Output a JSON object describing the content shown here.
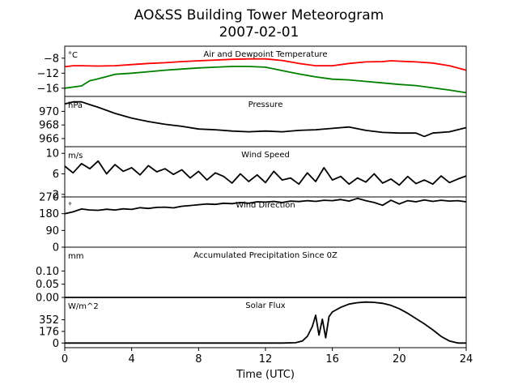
{
  "chart_data": {
    "type": "line",
    "title": "AO&SS Building Tower Meteorogram",
    "subtitle": "2007-02-01",
    "xlabel": "Time (UTC)",
    "xlim": [
      0,
      24
    ],
    "xticks": [
      "0",
      "4",
      "8",
      "12",
      "16",
      "20",
      "24"
    ],
    "panels": [
      {
        "id": "temperature",
        "unit": "°C",
        "label": "Air and Dewpoint Temperature",
        "ylim": [
          -18.2,
          -4.8
        ],
        "yticks": [
          "−8",
          "−12",
          "−16"
        ],
        "ytick_values": [
          -8,
          -12,
          -16
        ],
        "series": [
          {
            "color": "#ff0000",
            "x": [
              0,
              0.5,
              1,
              2,
              3,
              4,
              5,
              6,
              7,
              8,
              9,
              10,
              11,
              12,
              13,
              14,
              15,
              16,
              17,
              18,
              19,
              19.5,
              20,
              21,
              22,
              23,
              24
            ],
            "y": [
              -10.3,
              -10.0,
              -10.0,
              -10.1,
              -10.0,
              -9.7,
              -9.4,
              -9.2,
              -8.9,
              -8.7,
              -8.5,
              -8.3,
              -8.2,
              -8.2,
              -8.6,
              -9.4,
              -10.0,
              -10.0,
              -9.4,
              -9.0,
              -8.9,
              -8.7,
              -8.8,
              -9.0,
              -9.3,
              -10.0,
              -11.2
            ]
          },
          {
            "color": "#008000",
            "x": [
              0,
              1,
              1.5,
              2,
              3,
              4,
              5,
              6,
              7,
              8,
              9,
              10,
              11,
              12,
              13,
              14,
              15,
              16,
              17,
              18,
              19,
              20,
              21,
              22,
              23,
              24
            ],
            "y": [
              -16.0,
              -15.4,
              -14.0,
              -13.5,
              -12.3,
              -12.0,
              -11.6,
              -11.2,
              -10.9,
              -10.6,
              -10.4,
              -10.2,
              -10.2,
              -10.4,
              -11.3,
              -12.2,
              -13.0,
              -13.6,
              -13.8,
              -14.2,
              -14.6,
              -15.0,
              -15.3,
              -15.9,
              -16.5,
              -17.2
            ]
          }
        ]
      },
      {
        "id": "pressure",
        "unit": "hPa",
        "label": "Pressure",
        "ylim": [
          964.8,
          972.2
        ],
        "yticks": [
          "970",
          "968",
          "966"
        ],
        "ytick_values": [
          970,
          968,
          966
        ],
        "series": [
          {
            "color": "#000000",
            "x": [
              0,
              0.5,
              1,
              1.5,
              2,
              3,
              4,
              5,
              6,
              7,
              8,
              9,
              10,
              11,
              12,
              13,
              14,
              15,
              16,
              17,
              18,
              19,
              20,
              21,
              21.5,
              22,
              23,
              24
            ],
            "y": [
              971.1,
              971.4,
              971.4,
              971.0,
              970.6,
              969.7,
              969.0,
              968.5,
              968.1,
              967.8,
              967.4,
              967.3,
              967.1,
              967.0,
              967.1,
              967.0,
              967.2,
              967.3,
              967.5,
              967.7,
              967.2,
              966.9,
              966.8,
              966.8,
              966.3,
              966.8,
              967.0,
              967.6
            ]
          }
        ]
      },
      {
        "id": "wind_speed",
        "unit": "m/s",
        "label": "Wind Speed",
        "ylim": [
          1.5,
          11.3
        ],
        "yticks": [
          "10",
          "6",
          "2"
        ],
        "ytick_values": [
          10,
          6,
          2
        ],
        "series": [
          {
            "color": "#000000",
            "x": [
              0,
              0.5,
              1,
              1.5,
              2,
              2.5,
              3,
              3.5,
              4,
              4.5,
              5,
              5.5,
              6,
              6.5,
              7,
              7.5,
              8,
              8.5,
              9,
              9.5,
              10,
              10.5,
              11,
              11.5,
              12,
              12.5,
              13,
              13.5,
              14,
              14.5,
              15,
              15.5,
              16,
              16.5,
              17,
              17.5,
              18,
              18.5,
              19,
              19.5,
              20,
              20.5,
              21,
              21.5,
              22,
              22.5,
              23,
              23.5,
              24
            ],
            "y": [
              7.5,
              6.2,
              8.0,
              7.0,
              8.5,
              6.0,
              7.8,
              6.5,
              7.2,
              5.8,
              7.6,
              6.4,
              7.0,
              5.9,
              6.8,
              5.2,
              6.5,
              4.8,
              6.2,
              5.5,
              4.2,
              6.0,
              4.5,
              5.8,
              4.3,
              6.5,
              4.8,
              5.2,
              4.0,
              6.2,
              4.5,
              7.2,
              4.8,
              5.5,
              4.0,
              5.2,
              4.4,
              6.0,
              4.2,
              5.0,
              3.8,
              5.5,
              4.1,
              4.8,
              4.0,
              5.6,
              4.3,
              5.0,
              5.6
            ]
          }
        ]
      },
      {
        "id": "wind_direction",
        "unit": "°",
        "label": "Wind Direction",
        "ylim": [
          0,
          270
        ],
        "yticks": [
          "270",
          "180",
          "90",
          "0"
        ],
        "ytick_values": [
          270,
          180,
          90,
          0
        ],
        "series": [
          {
            "color": "#000000",
            "x": [
              0,
              0.5,
              1,
              1.5,
              2,
              2.5,
              3,
              3.5,
              4,
              4.5,
              5,
              5.5,
              6,
              6.5,
              7,
              7.5,
              8,
              8.5,
              9,
              9.5,
              10,
              10.5,
              11,
              11.5,
              12,
              12.5,
              13,
              13.5,
              14,
              14.5,
              15,
              15.5,
              16,
              16.5,
              17,
              17.5,
              18,
              18.5,
              19,
              19.5,
              20,
              20.5,
              21,
              21.5,
              22,
              22.5,
              23,
              23.5,
              24
            ],
            "y": [
              180,
              190,
              205,
              200,
              198,
              204,
              200,
              206,
              203,
              212,
              208,
              214,
              215,
              211,
              220,
              224,
              228,
              232,
              230,
              236,
              234,
              240,
              236,
              244,
              242,
              246,
              240,
              248,
              245,
              250,
              246,
              252,
              250,
              256,
              248,
              262,
              250,
              240,
              225,
              252,
              232,
              250,
              244,
              254,
              246,
              252,
              248,
              250,
              244
            ]
          }
        ]
      },
      {
        "id": "precipitation",
        "unit": "mm",
        "label": "Accumulated Precipitation Since 0Z",
        "ylim": [
          0,
          0.19
        ],
        "yticks": [
          "0.10",
          "0.05",
          "0.00"
        ],
        "ytick_values": [
          0.1,
          0.05,
          0.0
        ],
        "series": [
          {
            "color": "#000000",
            "x": [
              0,
              24
            ],
            "y": [
              0,
              0
            ]
          }
        ]
      },
      {
        "id": "solar_flux",
        "unit": "W/m^2",
        "label": "Solar Flux",
        "ylim": [
          -70,
          690
        ],
        "yticks": [
          "352",
          "176",
          "0"
        ],
        "ytick_values": [
          352,
          176,
          0
        ],
        "series": [
          {
            "color": "#000000",
            "x": [
              0,
              12,
              13,
              13.8,
              14.2,
              14.5,
              14.8,
              15.0,
              15.2,
              15.4,
              15.6,
              15.8,
              16.0,
              16.5,
              17.0,
              17.5,
              18.0,
              18.5,
              19.0,
              19.5,
              20.0,
              20.5,
              21.0,
              21.5,
              22.0,
              22.5,
              23.0,
              23.5,
              24
            ],
            "y": [
              0,
              0,
              0,
              5,
              30,
              100,
              250,
              420,
              120,
              360,
              80,
              400,
              470,
              540,
              590,
              610,
              620,
              615,
              600,
              570,
              520,
              450,
              370,
              290,
              200,
              100,
              30,
              0,
              0
            ]
          }
        ]
      }
    ]
  }
}
